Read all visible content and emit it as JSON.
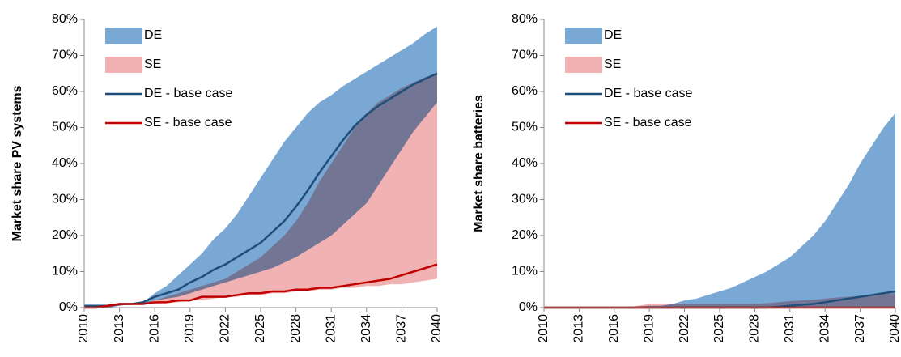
{
  "chart_data": [
    {
      "type": "range",
      "ylabel": "Market share PV systems",
      "x": [
        2010,
        2011,
        2012,
        2013,
        2014,
        2015,
        2016,
        2017,
        2018,
        2019,
        2020,
        2021,
        2022,
        2023,
        2024,
        2025,
        2026,
        2027,
        2028,
        2029,
        2030,
        2031,
        2032,
        2033,
        2034,
        2035,
        2036,
        2037,
        2038,
        2039,
        2040
      ],
      "xlim": [
        2010,
        2040
      ],
      "xticks": [
        2010,
        2013,
        2016,
        2019,
        2022,
        2025,
        2028,
        2031,
        2034,
        2037,
        2040
      ],
      "ylim": [
        0,
        80
      ],
      "yticks": [
        {
          "value": 0,
          "label": "0%"
        },
        {
          "value": 10,
          "label": "10%"
        },
        {
          "value": 20,
          "label": "20%"
        },
        {
          "value": 30,
          "label": "30%"
        },
        {
          "value": 40,
          "label": "40%"
        },
        {
          "value": 50,
          "label": "50%"
        },
        {
          "value": 60,
          "label": "60%"
        },
        {
          "value": 70,
          "label": "70%"
        },
        {
          "value": 80,
          "label": "80%"
        }
      ],
      "legend": "top-left",
      "series": [
        {
          "name": "DE",
          "kind": "band",
          "color": "#7aa8d4",
          "lower": [
            0,
            0,
            0,
            0.5,
            1,
            1,
            2,
            2.5,
            3,
            4,
            5,
            6,
            7,
            8,
            9,
            10,
            11,
            12.5,
            14,
            16,
            18,
            20,
            23,
            26,
            29,
            34,
            39,
            44,
            49,
            53,
            57
          ],
          "upper": [
            0.5,
            0.5,
            0.5,
            1,
            1,
            1.5,
            4,
            6,
            9,
            12,
            15,
            19,
            22,
            26,
            31,
            36,
            41,
            46,
            50,
            54,
            57,
            59,
            61.5,
            63.5,
            65.5,
            67.5,
            69.5,
            71.5,
            73.5,
            76,
            78
          ]
        },
        {
          "name": "SE",
          "kind": "band",
          "color": "#f0b2b2",
          "lower": [
            0,
            0,
            0,
            0.5,
            1,
            1,
            1,
            1.5,
            1.5,
            2,
            2,
            2.5,
            3,
            3,
            3.5,
            3.5,
            4,
            4,
            4.5,
            4.5,
            5,
            5,
            5.5,
            5.5,
            6,
            6,
            6.5,
            6.5,
            7,
            7.5,
            8
          ],
          "upper": [
            0.5,
            0.5,
            0.5,
            1,
            1,
            1.5,
            2,
            3,
            4,
            5,
            6,
            7,
            8,
            10,
            12,
            14,
            17,
            20,
            24,
            29,
            35,
            40,
            45,
            50,
            54,
            57,
            59,
            61,
            62.5,
            64,
            65
          ]
        },
        {
          "name": "DE - base case",
          "kind": "line",
          "color": "#1f4e79",
          "values": [
            0.5,
            0.5,
            0.5,
            1,
            1,
            1.5,
            3,
            4,
            5,
            7,
            8.5,
            10.5,
            12,
            14,
            16,
            18,
            21,
            24,
            28,
            32.5,
            37.5,
            42,
            46.5,
            50.5,
            53.5,
            56,
            58,
            60,
            62,
            63.5,
            65
          ]
        },
        {
          "name": "SE - base case",
          "kind": "line",
          "color": "#c00000",
          "values": [
            0,
            0,
            0.5,
            1,
            1,
            1,
            1.5,
            1.5,
            2,
            2,
            3,
            3,
            3,
            3.5,
            4,
            4,
            4.5,
            4.5,
            5,
            5,
            5.5,
            5.5,
            6,
            6.5,
            7,
            7.5,
            8,
            9,
            10,
            11,
            12
          ]
        }
      ]
    },
    {
      "type": "range",
      "ylabel": "Market share batteries",
      "x": [
        2010,
        2011,
        2012,
        2013,
        2014,
        2015,
        2016,
        2017,
        2018,
        2019,
        2020,
        2021,
        2022,
        2023,
        2024,
        2025,
        2026,
        2027,
        2028,
        2029,
        2030,
        2031,
        2032,
        2033,
        2034,
        2035,
        2036,
        2037,
        2038,
        2039,
        2040
      ],
      "xlim": [
        2010,
        2040
      ],
      "xticks": [
        2010,
        2013,
        2016,
        2019,
        2022,
        2025,
        2028,
        2031,
        2034,
        2037,
        2040
      ],
      "ylim": [
        0,
        80
      ],
      "yticks": [
        {
          "value": 0,
          "label": "0%"
        },
        {
          "value": 10,
          "label": "10%"
        },
        {
          "value": 20,
          "label": "20%"
        },
        {
          "value": 30,
          "label": "30%"
        },
        {
          "value": 40,
          "label": "40%"
        },
        {
          "value": 50,
          "label": "50%"
        },
        {
          "value": 60,
          "label": "60%"
        },
        {
          "value": 70,
          "label": "70%"
        },
        {
          "value": 80,
          "label": "80%"
        }
      ],
      "legend": "top-left",
      "series": [
        {
          "name": "DE",
          "kind": "band",
          "color": "#7aa8d4",
          "lower": [
            0,
            0,
            0,
            0,
            0,
            0,
            0,
            0,
            0,
            0,
            0,
            0,
            0,
            0,
            0,
            0,
            0,
            0,
            0,
            0,
            0,
            0,
            0,
            0,
            0,
            0,
            0,
            0,
            0,
            0,
            0
          ],
          "upper": [
            0,
            0,
            0,
            0,
            0,
            0,
            0,
            0,
            0.3,
            0.5,
            0.5,
            1,
            2,
            2.5,
            3.5,
            4.5,
            5.5,
            7,
            8.5,
            10,
            12,
            14,
            17,
            20,
            24,
            29,
            34,
            40,
            45,
            50,
            54
          ]
        },
        {
          "name": "SE",
          "kind": "band",
          "color": "#f0b2b2",
          "lower": [
            0,
            0,
            0,
            0,
            0,
            0,
            0,
            0,
            0,
            0,
            0,
            0,
            0,
            0,
            0,
            0,
            0,
            0,
            0,
            0,
            0,
            0,
            0,
            0,
            0,
            0,
            0,
            0,
            0,
            0,
            0
          ],
          "upper": [
            0,
            0,
            0,
            0,
            0,
            0,
            0,
            0,
            0.5,
            1,
            1,
            1,
            1,
            1,
            1,
            1,
            1,
            1,
            1,
            1.2,
            1.5,
            1.8,
            2,
            2.2,
            2.5,
            2.8,
            3,
            3.2,
            3.5,
            3.8,
            4
          ]
        },
        {
          "name": "DE - base case",
          "kind": "line",
          "color": "#1f4e79",
          "values": [
            0,
            0,
            0,
            0,
            0,
            0,
            0,
            0,
            0,
            0,
            0,
            0,
            0,
            0,
            0,
            0,
            0,
            0,
            0,
            0,
            0.2,
            0.5,
            0.8,
            1,
            1.5,
            2,
            2.5,
            3,
            3.5,
            4,
            4.5
          ]
        },
        {
          "name": "SE - base case",
          "kind": "line",
          "color": "#c00000",
          "values": [
            0,
            0,
            0,
            0,
            0,
            0,
            0,
            0,
            0,
            0,
            0,
            0,
            0,
            0,
            0,
            0,
            0,
            0,
            0,
            0,
            0,
            0,
            0,
            0,
            0,
            0,
            0,
            0,
            0,
            0,
            0
          ]
        }
      ]
    }
  ]
}
